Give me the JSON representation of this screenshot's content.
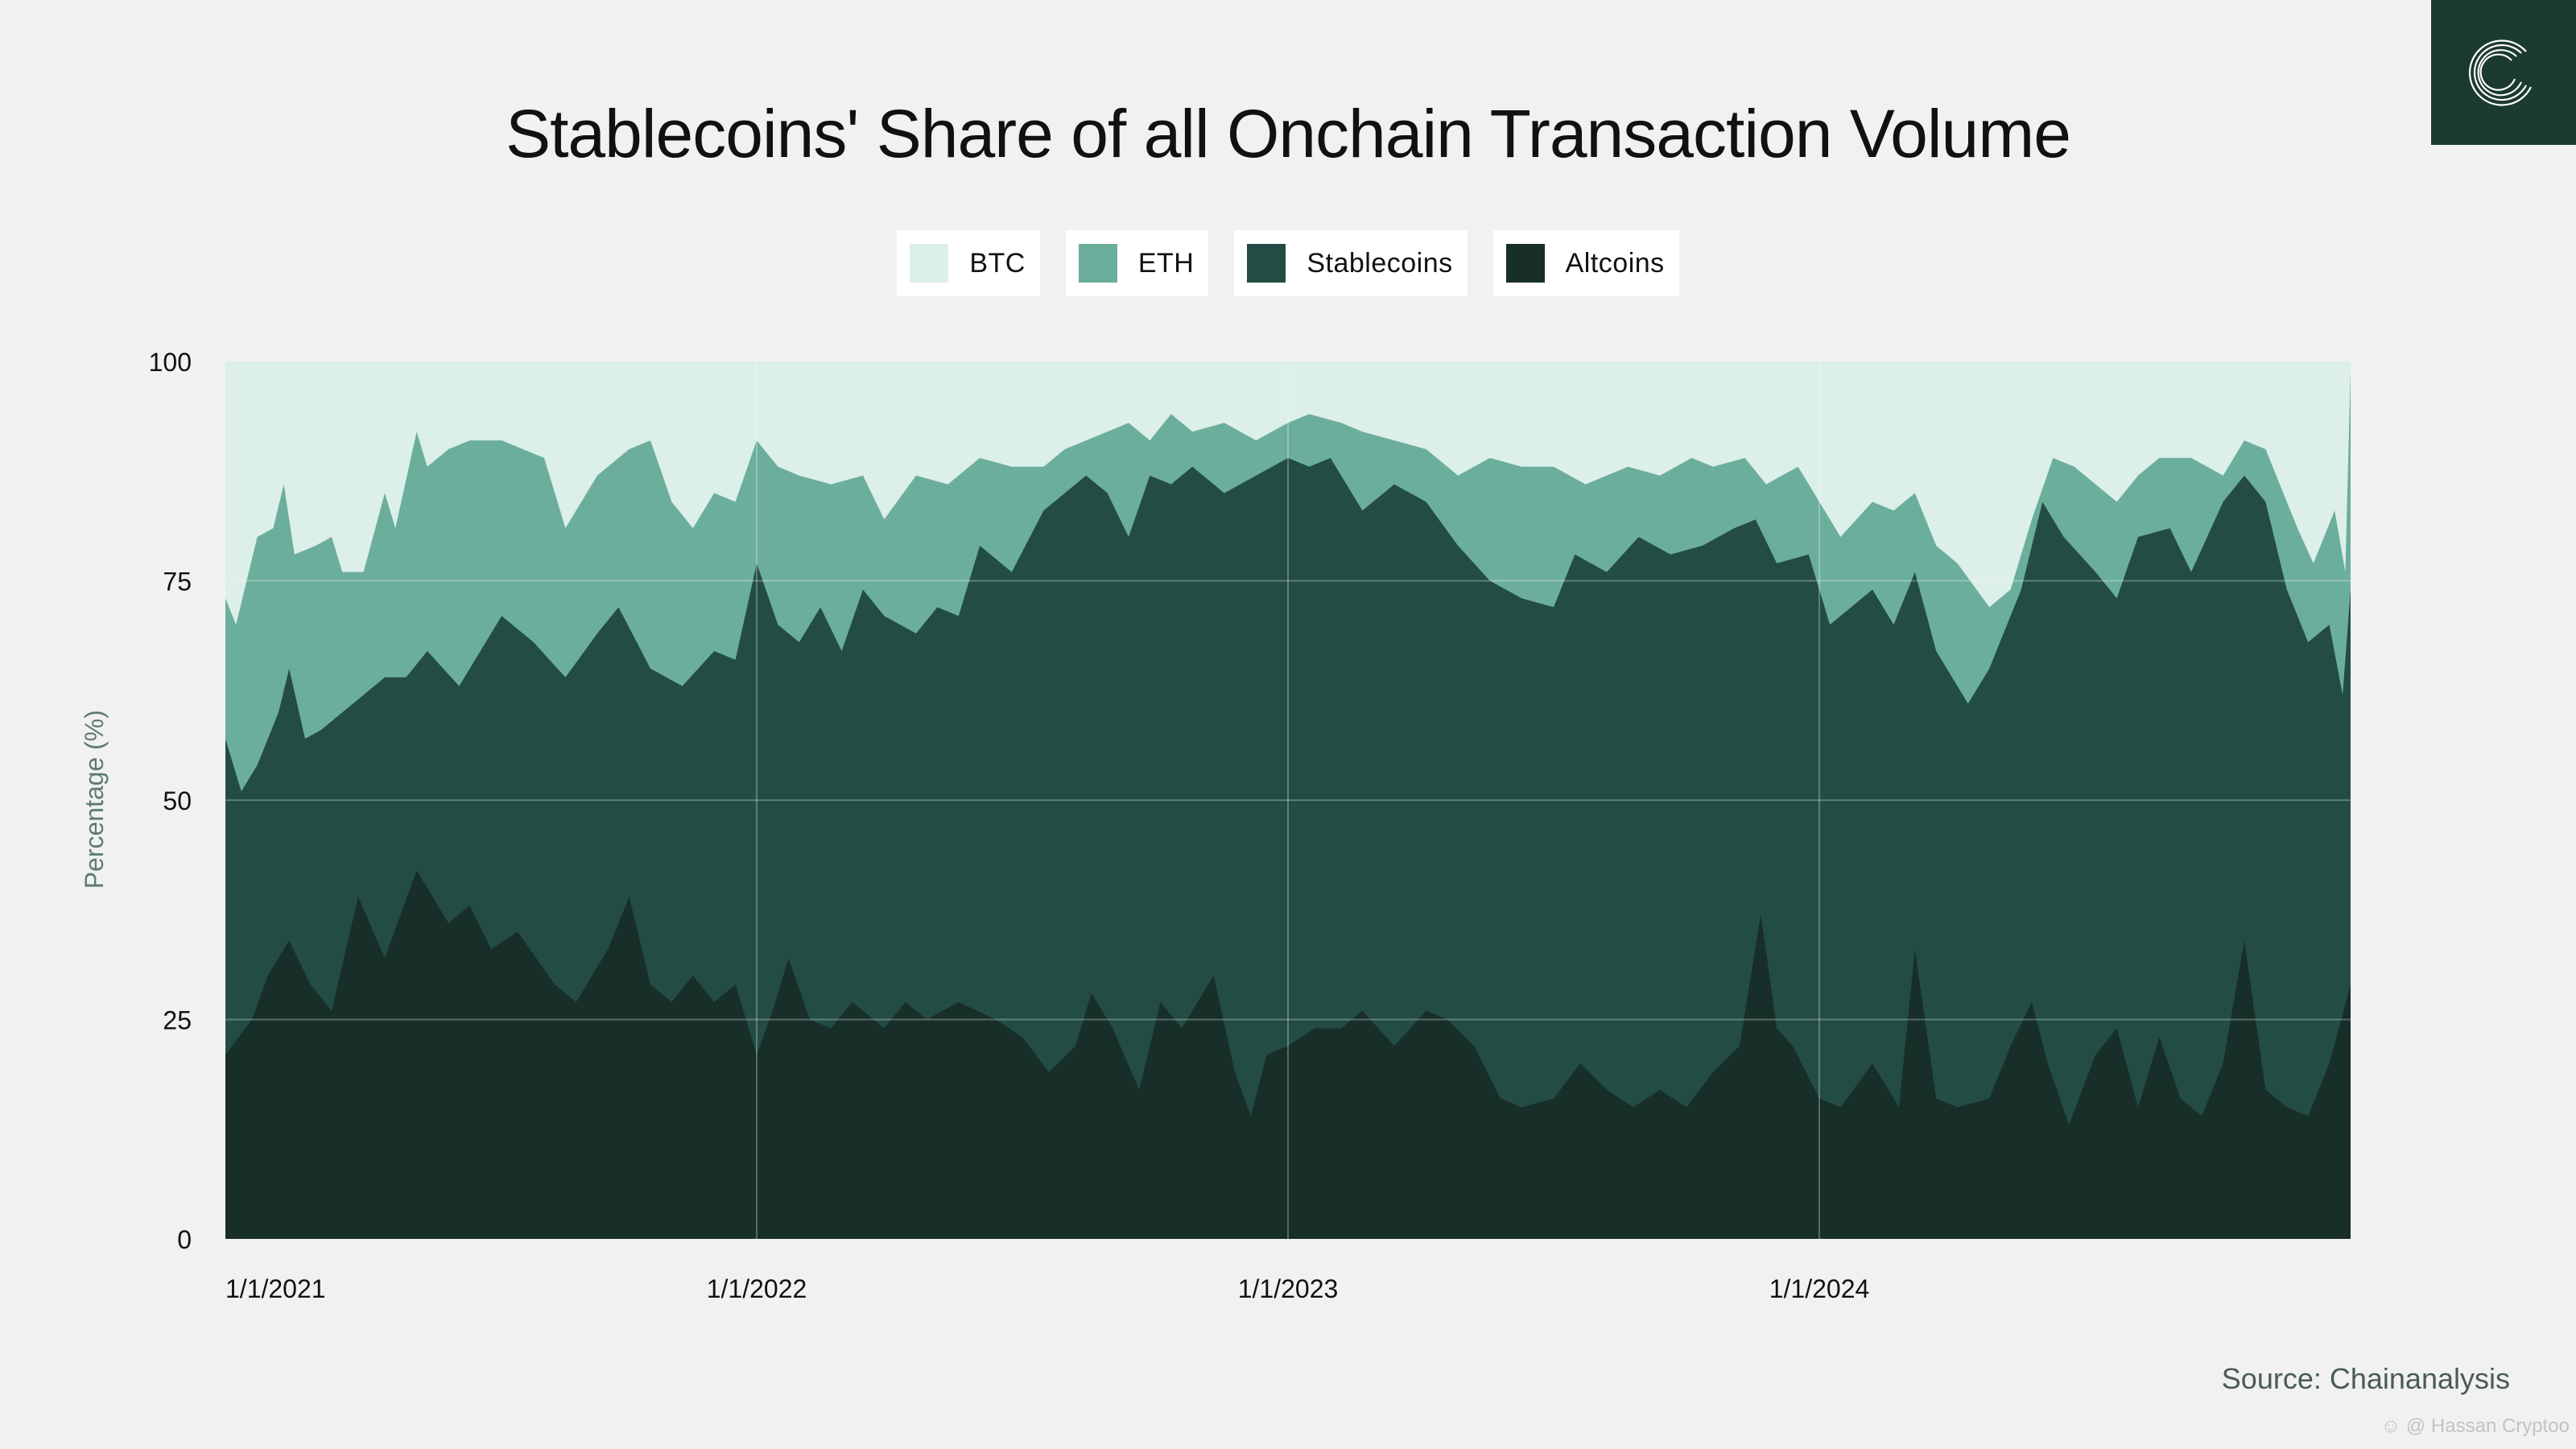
{
  "colors": {
    "btc": "#dcefe9",
    "eth": "#6cae9c",
    "stablecoins": "#234d44",
    "altcoins": "#182e29",
    "background": "#f1f1f1",
    "logo_bg": "#1b3a31"
  },
  "icons": {
    "logo": "chainalysis-logo-icon"
  },
  "source": "Source: Chainanalysis",
  "watermark": "☺ @ Hassan Cryptoo",
  "chart_data": {
    "type": "area",
    "stacked": true,
    "title": "Stablecoins' Share of all Onchain Transaction Volume",
    "ylabel": "Percentage (%)",
    "xlabel": "",
    "ylim": [
      0,
      100
    ],
    "yticks": [
      "0",
      "25",
      "50",
      "75",
      "100"
    ],
    "xlim": [
      2021.0,
      2025.0
    ],
    "xticks": [
      {
        "value": 2021,
        "label": "1/1/2021"
      },
      {
        "value": 2022,
        "label": "1/1/2022"
      },
      {
        "value": 2023,
        "label": "1/1/2023"
      },
      {
        "value": 2024,
        "label": "1/1/2024"
      }
    ],
    "legend": [
      "BTC",
      "ETH",
      "Stablecoins",
      "Altcoins"
    ],
    "legend_placement": "top-center",
    "x_unit": "decimal year",
    "layer_tops_note": "each series gives the cumulative top boundary (%) of that stacked band; BTC fills from ETH top to 100",
    "series": [
      {
        "name": "Altcoins (top of band)",
        "points": [
          [
            2021.0,
            21
          ],
          [
            2021.05,
            25
          ],
          [
            2021.08,
            30
          ],
          [
            2021.12,
            34
          ],
          [
            2021.16,
            29
          ],
          [
            2021.2,
            26
          ],
          [
            2021.25,
            39
          ],
          [
            2021.3,
            32
          ],
          [
            2021.36,
            42
          ],
          [
            2021.42,
            36
          ],
          [
            2021.46,
            38
          ],
          [
            2021.5,
            33
          ],
          [
            2021.55,
            35
          ],
          [
            2021.62,
            29
          ],
          [
            2021.66,
            27
          ],
          [
            2021.72,
            33
          ],
          [
            2021.76,
            39
          ],
          [
            2021.8,
            29
          ],
          [
            2021.84,
            27
          ],
          [
            2021.88,
            30
          ],
          [
            2021.92,
            27
          ],
          [
            2021.96,
            29
          ],
          [
            2022.0,
            21
          ],
          [
            2022.03,
            26
          ],
          [
            2022.06,
            32
          ],
          [
            2022.1,
            25
          ],
          [
            2022.14,
            24
          ],
          [
            2022.18,
            27
          ],
          [
            2022.24,
            24
          ],
          [
            2022.28,
            27
          ],
          [
            2022.32,
            25
          ],
          [
            2022.38,
            27
          ],
          [
            2022.45,
            25
          ],
          [
            2022.5,
            23
          ],
          [
            2022.55,
            19
          ],
          [
            2022.6,
            22
          ],
          [
            2022.63,
            28
          ],
          [
            2022.67,
            24
          ],
          [
            2022.72,
            17
          ],
          [
            2022.76,
            27
          ],
          [
            2022.8,
            24
          ],
          [
            2022.86,
            30
          ],
          [
            2022.9,
            19
          ],
          [
            2022.93,
            14
          ],
          [
            2022.96,
            21
          ],
          [
            2023.0,
            22
          ],
          [
            2023.05,
            24
          ],
          [
            2023.1,
            24
          ],
          [
            2023.14,
            26
          ],
          [
            2023.2,
            22
          ],
          [
            2023.26,
            26
          ],
          [
            2023.3,
            25
          ],
          [
            2023.35,
            22
          ],
          [
            2023.4,
            16
          ],
          [
            2023.44,
            15
          ],
          [
            2023.5,
            16
          ],
          [
            2023.55,
            20
          ],
          [
            2023.6,
            17
          ],
          [
            2023.65,
            15
          ],
          [
            2023.7,
            17
          ],
          [
            2023.75,
            15
          ],
          [
            2023.8,
            19
          ],
          [
            2023.85,
            22
          ],
          [
            2023.89,
            37
          ],
          [
            2023.92,
            24
          ],
          [
            2023.95,
            22
          ],
          [
            2024.0,
            16
          ],
          [
            2024.04,
            15
          ],
          [
            2024.1,
            20
          ],
          [
            2024.15,
            15
          ],
          [
            2024.18,
            33
          ],
          [
            2024.22,
            16
          ],
          [
            2024.26,
            15
          ],
          [
            2024.32,
            16
          ],
          [
            2024.36,
            22
          ],
          [
            2024.4,
            27
          ],
          [
            2024.43,
            20
          ],
          [
            2024.47,
            13
          ],
          [
            2024.52,
            21
          ],
          [
            2024.56,
            24
          ],
          [
            2024.6,
            15
          ],
          [
            2024.64,
            23
          ],
          [
            2024.68,
            16
          ],
          [
            2024.72,
            14
          ],
          [
            2024.76,
            20
          ],
          [
            2024.8,
            34
          ],
          [
            2024.84,
            17
          ],
          [
            2024.88,
            15
          ],
          [
            2024.92,
            14
          ],
          [
            2024.96,
            20
          ],
          [
            2025.0,
            29
          ]
        ]
      },
      {
        "name": "Stablecoins (top of band)",
        "points": [
          [
            2021.0,
            57
          ],
          [
            2021.03,
            51
          ],
          [
            2021.06,
            54
          ],
          [
            2021.1,
            60
          ],
          [
            2021.12,
            65
          ],
          [
            2021.15,
            57
          ],
          [
            2021.18,
            58
          ],
          [
            2021.22,
            60
          ],
          [
            2021.26,
            62
          ],
          [
            2021.3,
            64
          ],
          [
            2021.34,
            64
          ],
          [
            2021.38,
            67
          ],
          [
            2021.44,
            63
          ],
          [
            2021.52,
            71
          ],
          [
            2021.58,
            68
          ],
          [
            2021.64,
            64
          ],
          [
            2021.7,
            69
          ],
          [
            2021.74,
            72
          ],
          [
            2021.8,
            65
          ],
          [
            2021.86,
            63
          ],
          [
            2021.92,
            67
          ],
          [
            2021.96,
            66
          ],
          [
            2022.0,
            77
          ],
          [
            2022.04,
            70
          ],
          [
            2022.08,
            68
          ],
          [
            2022.12,
            72
          ],
          [
            2022.16,
            67
          ],
          [
            2022.2,
            74
          ],
          [
            2022.24,
            71
          ],
          [
            2022.3,
            69
          ],
          [
            2022.34,
            72
          ],
          [
            2022.38,
            71
          ],
          [
            2022.42,
            79
          ],
          [
            2022.48,
            76
          ],
          [
            2022.54,
            83
          ],
          [
            2022.58,
            85
          ],
          [
            2022.62,
            87
          ],
          [
            2022.66,
            85
          ],
          [
            2022.7,
            80
          ],
          [
            2022.74,
            87
          ],
          [
            2022.78,
            86
          ],
          [
            2022.82,
            88
          ],
          [
            2022.88,
            85
          ],
          [
            2022.94,
            87
          ],
          [
            2023.0,
            89
          ],
          [
            2023.04,
            88
          ],
          [
            2023.08,
            89
          ],
          [
            2023.14,
            83
          ],
          [
            2023.2,
            86
          ],
          [
            2023.26,
            84
          ],
          [
            2023.32,
            79
          ],
          [
            2023.38,
            75
          ],
          [
            2023.44,
            73
          ],
          [
            2023.5,
            72
          ],
          [
            2023.54,
            78
          ],
          [
            2023.6,
            76
          ],
          [
            2023.66,
            80
          ],
          [
            2023.72,
            78
          ],
          [
            2023.78,
            79
          ],
          [
            2023.84,
            81
          ],
          [
            2023.88,
            82
          ],
          [
            2023.92,
            77
          ],
          [
            2023.98,
            78
          ],
          [
            2024.02,
            70
          ],
          [
            2024.06,
            72
          ],
          [
            2024.1,
            74
          ],
          [
            2024.14,
            70
          ],
          [
            2024.18,
            76
          ],
          [
            2024.22,
            67
          ],
          [
            2024.28,
            61
          ],
          [
            2024.32,
            65
          ],
          [
            2024.38,
            74
          ],
          [
            2024.42,
            84
          ],
          [
            2024.46,
            80
          ],
          [
            2024.52,
            76
          ],
          [
            2024.56,
            73
          ],
          [
            2024.6,
            80
          ],
          [
            2024.66,
            81
          ],
          [
            2024.7,
            76
          ],
          [
            2024.76,
            84
          ],
          [
            2024.8,
            87
          ],
          [
            2024.84,
            84
          ],
          [
            2024.88,
            74
          ],
          [
            2024.92,
            68
          ],
          [
            2024.96,
            70
          ],
          [
            2024.985,
            62
          ],
          [
            2025.0,
            74
          ]
        ]
      },
      {
        "name": "ETH (top of band)",
        "points": [
          [
            2021.0,
            73
          ],
          [
            2021.02,
            70
          ],
          [
            2021.06,
            80
          ],
          [
            2021.09,
            81
          ],
          [
            2021.11,
            86
          ],
          [
            2021.13,
            78
          ],
          [
            2021.17,
            79
          ],
          [
            2021.2,
            80
          ],
          [
            2021.22,
            76
          ],
          [
            2021.26,
            76
          ],
          [
            2021.3,
            85
          ],
          [
            2021.32,
            81
          ],
          [
            2021.36,
            92
          ],
          [
            2021.38,
            88
          ],
          [
            2021.42,
            90
          ],
          [
            2021.46,
            91
          ],
          [
            2021.52,
            91
          ],
          [
            2021.56,
            90
          ],
          [
            2021.6,
            89
          ],
          [
            2021.64,
            81
          ],
          [
            2021.7,
            87
          ],
          [
            2021.76,
            90
          ],
          [
            2021.8,
            91
          ],
          [
            2021.84,
            84
          ],
          [
            2021.88,
            81
          ],
          [
            2021.92,
            85
          ],
          [
            2021.96,
            84
          ],
          [
            2022.0,
            91
          ],
          [
            2022.04,
            88
          ],
          [
            2022.08,
            87
          ],
          [
            2022.14,
            86
          ],
          [
            2022.2,
            87
          ],
          [
            2022.24,
            82
          ],
          [
            2022.3,
            87
          ],
          [
            2022.36,
            86
          ],
          [
            2022.42,
            89
          ],
          [
            2022.48,
            88
          ],
          [
            2022.54,
            88
          ],
          [
            2022.58,
            90
          ],
          [
            2022.62,
            91
          ],
          [
            2022.66,
            92
          ],
          [
            2022.7,
            93
          ],
          [
            2022.74,
            91
          ],
          [
            2022.78,
            94
          ],
          [
            2022.82,
            92
          ],
          [
            2022.88,
            93
          ],
          [
            2022.94,
            91
          ],
          [
            2023.0,
            93
          ],
          [
            2023.04,
            94
          ],
          [
            2023.1,
            93
          ],
          [
            2023.14,
            92
          ],
          [
            2023.2,
            91
          ],
          [
            2023.26,
            90
          ],
          [
            2023.32,
            87
          ],
          [
            2023.38,
            89
          ],
          [
            2023.44,
            88
          ],
          [
            2023.5,
            88
          ],
          [
            2023.56,
            86
          ],
          [
            2023.6,
            87
          ],
          [
            2023.64,
            88
          ],
          [
            2023.7,
            87
          ],
          [
            2023.76,
            89
          ],
          [
            2023.8,
            88
          ],
          [
            2023.86,
            89
          ],
          [
            2023.9,
            86
          ],
          [
            2023.96,
            88
          ],
          [
            2024.0,
            84
          ],
          [
            2024.04,
            80
          ],
          [
            2024.1,
            84
          ],
          [
            2024.14,
            83
          ],
          [
            2024.18,
            85
          ],
          [
            2024.22,
            79
          ],
          [
            2024.26,
            77
          ],
          [
            2024.32,
            72
          ],
          [
            2024.36,
            74
          ],
          [
            2024.4,
            82
          ],
          [
            2024.44,
            89
          ],
          [
            2024.48,
            88
          ],
          [
            2024.52,
            86
          ],
          [
            2024.56,
            84
          ],
          [
            2024.6,
            87
          ],
          [
            2024.64,
            89
          ],
          [
            2024.7,
            89
          ],
          [
            2024.76,
            87
          ],
          [
            2024.8,
            91
          ],
          [
            2024.84,
            90
          ],
          [
            2024.9,
            81
          ],
          [
            2024.93,
            77
          ],
          [
            2024.97,
            83
          ],
          [
            2024.99,
            76
          ],
          [
            2025.0,
            99
          ]
        ]
      }
    ]
  }
}
